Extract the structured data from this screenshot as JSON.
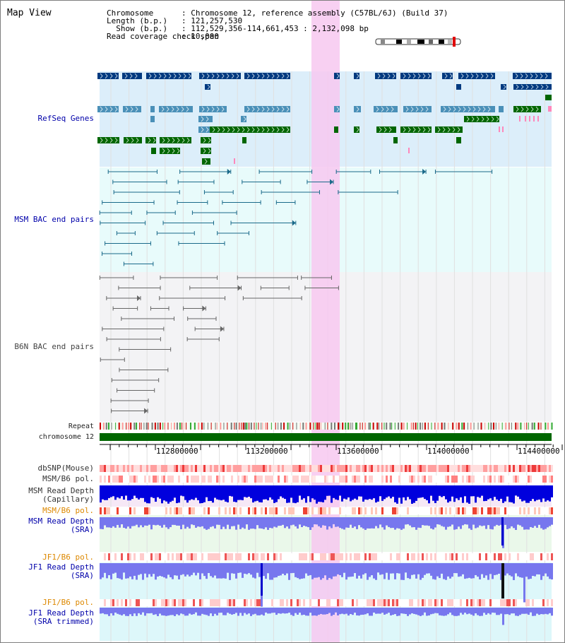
{
  "app": {
    "title": "Map View"
  },
  "info": {
    "keys": "Chromosome\nLength (b.p.)\n  Show (b.p.)\nRead coverage check span",
    "values": ": Chromosome 12, reference assembly (C57BL/6J) (Build 37)\n: 121,257,530\n: 112,529,356-114,661,453 : 2,132,098 bp\n: 10,000"
  },
  "tracks": {
    "refseq": "RefSeq Genes",
    "msm_bac": "MSM BAC end pairs",
    "b6n_bac": "B6N BAC end pairs",
    "repeat": "Repeat",
    "chromosome": "chromosome 12",
    "dbsnp": "dbSNP(Mouse)",
    "msm_b6_pol_1": "MSM/B6 pol.",
    "msm_depth_cap": "MSM Read Depth\n(Capillary)",
    "msm_b6_pol_2": "MSM/B6 pol.",
    "msm_depth_sra": "MSM Read Depth\n(SRA)",
    "jf1_b6_pol_1": "JF1/B6 pol.",
    "jf1_depth_sra": "JF1 Read Depth\n(SRA)",
    "jf1_b6_pol_2": "JF1/B6 pol.",
    "jf1_depth_trim": "JF1 Read Depth\n(SRA trimmed)"
  },
  "axis": {
    "ticks": [
      "112800000",
      "113200000",
      "113600000",
      "114000000",
      "114400000"
    ]
  },
  "colors": {
    "highlight": "#f7c8f0",
    "gene_dark": "#003a80",
    "gene_light": "#4a90b8",
    "gene_green": "#006600",
    "msm_pair": "#1a6a8a",
    "b6n_pair": "#666666",
    "depth_cap": "#0000dd",
    "depth_sra": "#7777ee",
    "chromosome": "#006600"
  }
}
